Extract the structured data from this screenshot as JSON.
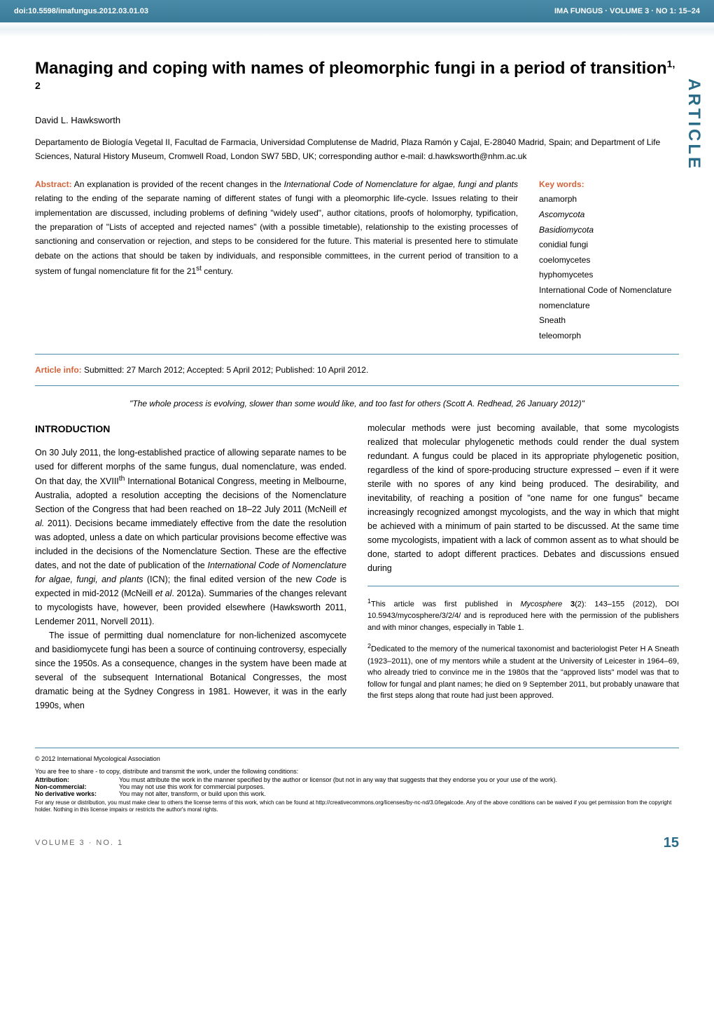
{
  "header": {
    "doi": "doi:10.5598/imafungus.2012.03.01.03",
    "journal_info": "IMA FUNGUS · VOLUME 3 · NO 1: 15–24"
  },
  "side_label": "ARTICLE",
  "title": "Managing and coping with names of pleomorphic fungi in a period of transition",
  "title_superscript": "1, 2",
  "author": "David L. Hawksworth",
  "affiliation": "Departamento de Biología Vegetal II, Facultad de Farmacia, Universidad Complutense de Madrid, Plaza Ramón y Cajal, E-28040 Madrid, Spain; and Department of Life Sciences, Natural History Museum, Cromwell Road, London SW7 5BD, UK; corresponding author e-mail: d.hawksworth@nhm.ac.uk",
  "abstract": {
    "label": "Abstract:",
    "text": "An explanation is provided of the recent changes in the International Code of Nomenclature for algae, fungi and plants relating to the ending of the separate naming of different states of fungi with a pleomorphic life-cycle. Issues relating to their implementation are discussed, including problems of defining \"widely used\", author citations, proofs of holomorphy, typification, the preparation of \"Lists of accepted and rejected names\" (with a possible timetable), relationship to the existing processes of sanctioning and conservation or rejection, and steps to be considered for the future. This material is presented here to stimulate debate on the actions that should be taken by individuals, and responsible committees, in the current period of transition to a system of fungal nomenclature fit for the 21st century."
  },
  "keywords": {
    "label": "Key words:",
    "items": [
      {
        "text": "anamorph",
        "italic": false
      },
      {
        "text": "Ascomycota",
        "italic": true
      },
      {
        "text": "Basidiomycota",
        "italic": true
      },
      {
        "text": "conidial fungi",
        "italic": false
      },
      {
        "text": "coelomycetes",
        "italic": false
      },
      {
        "text": "hyphomycetes",
        "italic": false
      },
      {
        "text": "International Code of Nomenclature",
        "italic": false
      },
      {
        "text": "nomenclature",
        "italic": false
      },
      {
        "text": "Sneath",
        "italic": false
      },
      {
        "text": "teleomorph",
        "italic": false
      }
    ]
  },
  "article_info": {
    "label": "Article info:",
    "text": "Submitted: 27 March 2012; Accepted: 5 April 2012; Published: 10 April 2012."
  },
  "quote": "\"The whole process is evolving, slower than some would like, and too fast for others (Scott A. Redhead, 26 January 2012)\"",
  "introduction": {
    "heading": "INTRODUCTION",
    "para1": "On 30 July 2011, the long-established practice of allowing separate names to be used for different morphs of the same fungus, dual nomenclature, was ended. On that day, the XVIIIth International Botanical Congress, meeting in Melbourne, Australia, adopted a resolution accepting the decisions of the Nomenclature Section of the Congress that had been reached on 18–22 July 2011 (McNeill et al. 2011). Decisions became immediately effective from the date the resolution was adopted, unless a date on which particular provisions become effective was included in the decisions of the Nomenclature Section. These are the effective dates, and not the date of publication of the International Code of Nomenclature for algae, fungi, and plants (ICN); the final edited version of the new Code is expected in mid-2012 (McNeill et al. 2012a). Summaries of the changes relevant to mycologists have, however, been provided elsewhere (Hawksworth 2011, Lendemer 2011, Norvell 2011).",
    "para2": "The issue of permitting dual nomenclature for non-lichenized ascomycete and basidiomycete fungi has been a source of continuing controversy, especially since the 1950s. As a consequence, changes in the system have been made at several of the subsequent International Botanical Congresses, the most dramatic being at the Sydney Congress in 1981. However, it was in the early 1990s, when",
    "para3": "molecular methods were just becoming available, that some mycologists realized that molecular phylogenetic methods could render the dual system redundant. A fungus could be placed in its appropriate phylogenetic position, regardless of the kind of spore-producing structure expressed – even if it were sterile with no spores of any kind being produced. The desirability, and inevitability, of reaching a position of \"one name for one fungus\" became increasingly recognized amongst mycologists, and the way in which that might be achieved with a minimum of pain started to be discussed. At the same time some mycologists, impatient with a lack of common assent as to what should be done, started to adopt different practices. Debates and discussions ensued during"
  },
  "footnotes": {
    "fn1": "1This article was first published in Mycosphere 3(2): 143–155 (2012), DOI 10.5943/mycosphere/3/2/4/ and is reproduced here with the permission of the publishers and with minor changes, especially in Table 1.",
    "fn2": "2Dedicated to the memory of the numerical taxonomist and bacteriologist Peter H A Sneath (1923–2011), one of my mentors while a student at the University of Leicester in 1964–69, who already tried to convince me in the 1980s that the \"approved lists\" model was that to follow for fungal and plant names; he died on 9 September 2011, but probably unaware that the first steps along that route had just been approved."
  },
  "license": {
    "copyright": "© 2012 International Mycological Association",
    "intro": "You are free to share - to copy, distribute and transmit the work, under the following conditions:",
    "attribution": {
      "label": "Attribution:",
      "text": "You must attribute the work in the manner specified by the author or licensor (but not in any way that suggests that they endorse you or your use of the work)."
    },
    "noncommercial": {
      "label": "Non-commercial:",
      "text": "You may not use this work for commercial purposes."
    },
    "noderivative": {
      "label": "No derivative works:",
      "text": "You may not alter, transform, or build upon this work."
    },
    "footer": "For any reuse or distribution, you must make clear to others the license terms of this work, which can be found at http://creativecommons.org/licenses/by-nc-nd/3.0/legalcode. Any of the above conditions can be waived if you get permission from the copyright holder. Nothing in this license impairs or restricts the author's moral rights."
  },
  "page_footer": {
    "volume": "VOLUME 3 · NO. 1",
    "page": "15"
  },
  "colors": {
    "header_bg": "#4a8ba8",
    "accent": "#d4633a",
    "side_label": "#2a6b88",
    "divider": "#4a8ba8"
  }
}
